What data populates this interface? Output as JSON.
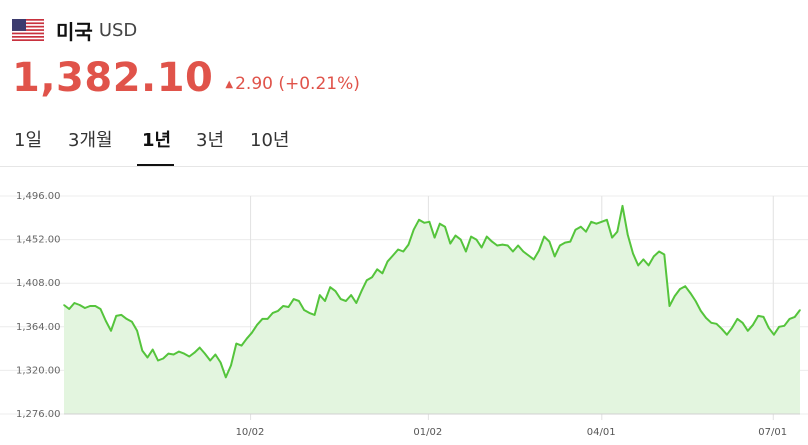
{
  "header": {
    "title": "미국",
    "currency": "USD",
    "flag_icon": "us-flag-icon"
  },
  "quote": {
    "price": "1,382.10",
    "change": "2.90 (+0.21%)",
    "direction": "up"
  },
  "tabs": [
    {
      "label": "1일",
      "active": false
    },
    {
      "label": "3개월",
      "active": false
    },
    {
      "label": "1년",
      "active": true
    },
    {
      "label": "3년",
      "active": false
    },
    {
      "label": "10년",
      "active": false
    }
  ],
  "colors": {
    "accent": "#e0534a",
    "line": "#55c43c",
    "fill": "#e3f5df"
  },
  "chart_data": {
    "type": "area",
    "title": "",
    "xlabel": "",
    "ylabel": "",
    "ylim": [
      1276.0,
      1496.0
    ],
    "yticks": [
      1276.0,
      1320.0,
      1364.0,
      1408.0,
      1452.0,
      1496.0
    ],
    "ytick_labels": [
      "1,276.00",
      "1,320.00",
      "1,364.00",
      "1,408.00",
      "1,452.00",
      "1,496.00"
    ],
    "xticks": [
      {
        "label": "10/02",
        "t": 0.2535
      },
      {
        "label": "01/02",
        "t": 0.4951
      },
      {
        "label": "04/01",
        "t": 0.7307
      },
      {
        "label": "07/01",
        "t": 0.9637
      }
    ],
    "grid": true,
    "series": [
      {
        "values": [
          1386,
          1382,
          1388,
          1386,
          1383,
          1385,
          1385,
          1382,
          1370,
          1360,
          1375,
          1376,
          1372,
          1369,
          1360,
          1340,
          1333,
          1341,
          1330,
          1332,
          1337,
          1336,
          1339,
          1337,
          1334,
          1338,
          1343,
          1337,
          1330,
          1336,
          1328,
          1313,
          1325,
          1347,
          1345,
          1352,
          1358,
          1366,
          1372,
          1372,
          1378,
          1380,
          1385,
          1384,
          1392,
          1390,
          1381,
          1378,
          1376,
          1396,
          1390,
          1404,
          1400,
          1392,
          1390,
          1396,
          1388,
          1400,
          1411,
          1414,
          1422,
          1418,
          1430,
          1436,
          1442,
          1440,
          1447,
          1462,
          1472,
          1469,
          1470,
          1454,
          1468,
          1465,
          1448,
          1456,
          1452,
          1440,
          1455,
          1452,
          1444,
          1455,
          1450,
          1446,
          1447,
          1446,
          1440,
          1446,
          1440,
          1436,
          1432,
          1441,
          1455,
          1450,
          1435,
          1446,
          1449,
          1450,
          1462,
          1465,
          1460,
          1470,
          1468,
          1470,
          1472,
          1454,
          1460,
          1486,
          1457,
          1438,
          1426,
          1432,
          1426,
          1435,
          1440,
          1437,
          1385,
          1395,
          1402,
          1405,
          1398,
          1390,
          1380,
          1373,
          1368,
          1367,
          1362,
          1356,
          1363,
          1372,
          1368,
          1360,
          1366,
          1375,
          1374,
          1363,
          1356,
          1364,
          1365,
          1372,
          1374,
          1381
        ]
      }
    ]
  }
}
